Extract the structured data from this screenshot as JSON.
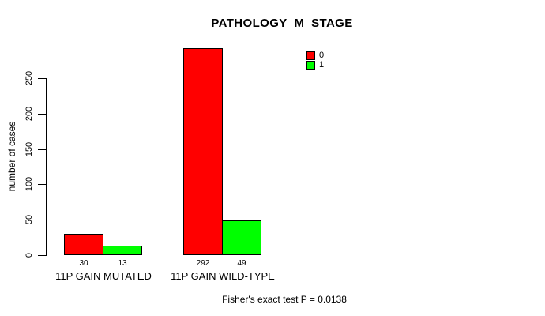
{
  "chart_data": {
    "type": "bar",
    "title": "PATHOLOGY_M_STAGE",
    "ylabel": "number of cases",
    "xlabel": "",
    "categories": [
      "11P GAIN MUTATED",
      "11P GAIN WILD-TYPE"
    ],
    "series": [
      {
        "name": "0",
        "color": "#FF0000",
        "values": [
          30,
          292
        ]
      },
      {
        "name": "1",
        "color": "#00FF00",
        "values": [
          13,
          49
        ]
      }
    ],
    "yticks": [
      0,
      50,
      100,
      150,
      200,
      250
    ],
    "ylim": [
      0,
      250
    ],
    "grid": false,
    "bar_value_labels_shown": true,
    "legend": {
      "position": "top-right",
      "entries": [
        {
          "label": "0",
          "color": "#FF0000"
        },
        {
          "label": "1",
          "color": "#00FF00"
        }
      ]
    },
    "annotation": "Fisher's exact test P = 0.0138"
  },
  "colors": {
    "background": "#FFFFFF",
    "axis": "#000000",
    "text": "#000000",
    "series_0": "#FF0000",
    "series_1": "#00FF00"
  }
}
